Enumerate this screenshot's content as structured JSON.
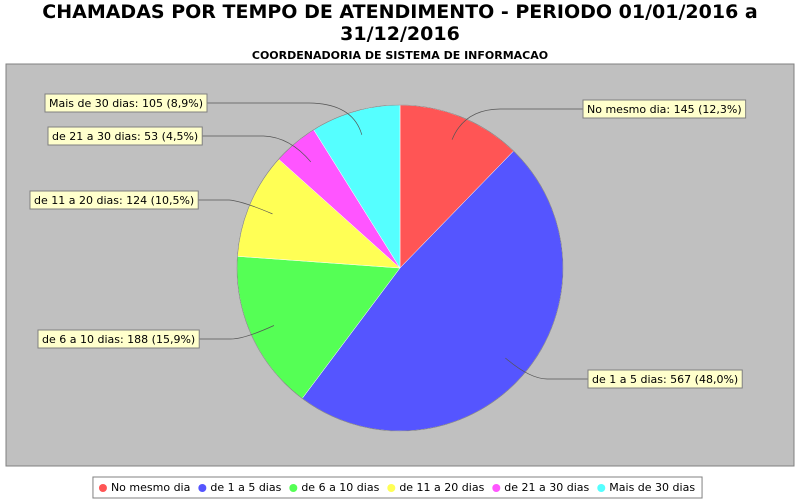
{
  "chart_data": {
    "type": "pie",
    "title": "CHAMADAS POR TEMPO DE ATENDIMENTO - PERIODO 01/01/2016 a 31/12/2016",
    "subtitle": "COORDENADORIA DE SISTEMA DE INFORMACAO",
    "categories": [
      "No mesmo dia",
      "de 1 a 5 dias",
      "de 6 a 10 dias",
      "de 11 a 20 dias",
      "de 21 a 30 dias",
      "Mais de 30 dias"
    ],
    "values": [
      145,
      567,
      188,
      124,
      53,
      105
    ],
    "value_labels": [
      "No mesmo dia: 145 (12,3%)",
      "de 1 a 5 dias: 567 (48,0%)",
      "de 6 a 10 dias: 188 (15,9%)",
      "de 11 a 20 dias: 124 (10,5%)",
      "de 21 a 30 dias: 53 (4,5%)",
      "Mais de 30 dias: 105 (8,9%)"
    ],
    "colors": [
      "#ff5555",
      "#5555ff",
      "#55ff55",
      "#ffff55",
      "#ff55ff",
      "#55ffff"
    ],
    "legend": "bottom"
  }
}
